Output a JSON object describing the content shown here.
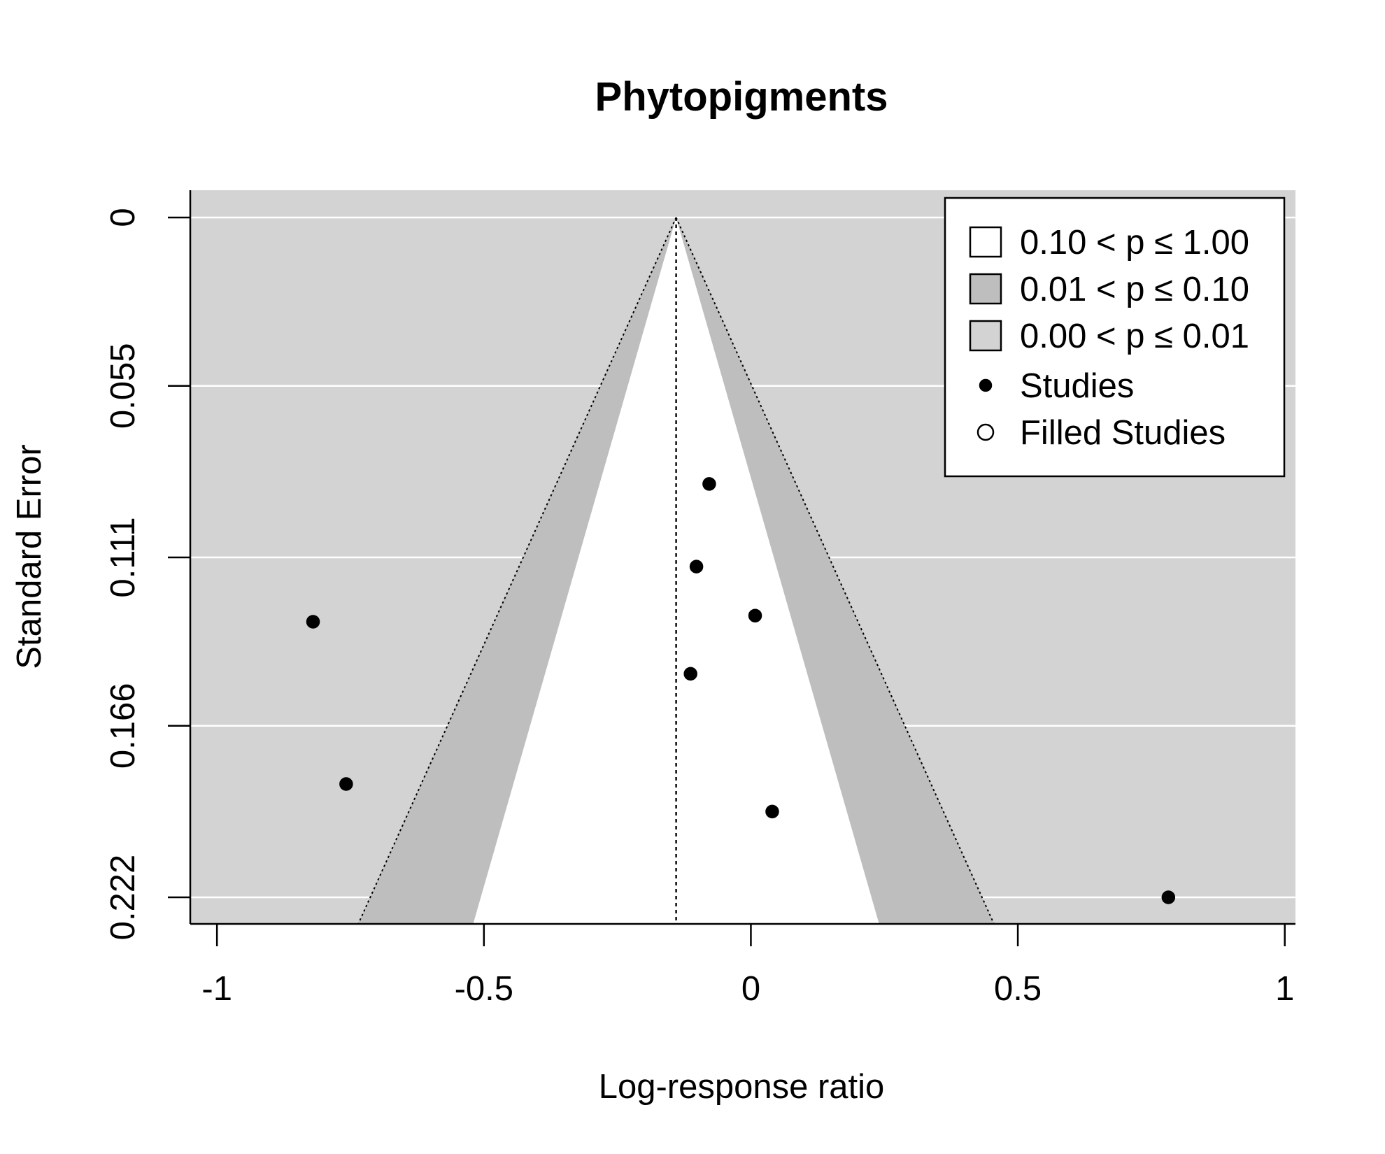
{
  "chart_data": {
    "type": "scatter",
    "subtype": "contour-enhanced funnel plot",
    "title": "Phytopigments",
    "xlabel": "Log-response ratio",
    "ylabel": "Standard Error",
    "xlim": [
      -1.05,
      1.02
    ],
    "ylim": [
      0.2311,
      0
    ],
    "y_reversed": true,
    "x_ticks": [
      -1,
      -0.5,
      0,
      0.5,
      1
    ],
    "x_tick_labels": [
      "-1",
      "-0.5",
      "0",
      "0.5",
      "1"
    ],
    "y_ticks": [
      0,
      0.055,
      0.111,
      0.166,
      0.222
    ],
    "y_tick_labels": [
      "0",
      "0.055",
      "0.111",
      "0.166",
      "0.222"
    ],
    "grid": "horizontal white lines at y ticks",
    "center_estimate": -0.14,
    "contours": [
      {
        "label": "0.10 < p ≤ 1.00",
        "z": 1.645,
        "color": "#ffffff"
      },
      {
        "label": "0.01 < p ≤ 0.10",
        "z": 2.576,
        "color": "#bebebe"
      },
      {
        "label": "0.00 < p ≤ 0.01",
        "color": "#d3d3d3"
      }
    ],
    "series": [
      {
        "name": "Studies",
        "marker": "filled-circle",
        "points": [
          {
            "x": -0.078,
            "y": 0.087
          },
          {
            "x": -0.102,
            "y": 0.114
          },
          {
            "x": 0.008,
            "y": 0.13
          },
          {
            "x": -0.82,
            "y": 0.132
          },
          {
            "x": -0.113,
            "y": 0.149
          },
          {
            "x": -0.758,
            "y": 0.185
          },
          {
            "x": 0.04,
            "y": 0.194
          },
          {
            "x": 0.782,
            "y": 0.222
          }
        ]
      },
      {
        "name": "Filled Studies",
        "marker": "open-circle",
        "points": []
      }
    ],
    "legend": {
      "placement": "top-right",
      "entries": [
        {
          "label": "0.10 < p ≤ 1.00",
          "symbol": "box",
          "color": "#ffffff"
        },
        {
          "label": "0.01 < p ≤ 0.10",
          "symbol": "box",
          "color": "#bebebe"
        },
        {
          "label": "0.00 < p ≤ 0.01",
          "symbol": "box",
          "color": "#d3d3d3"
        },
        {
          "label": "Studies",
          "symbol": "filled-circle",
          "color": "#000000"
        },
        {
          "label": "Filled Studies",
          "symbol": "open-circle",
          "color": "#000000"
        }
      ]
    }
  }
}
